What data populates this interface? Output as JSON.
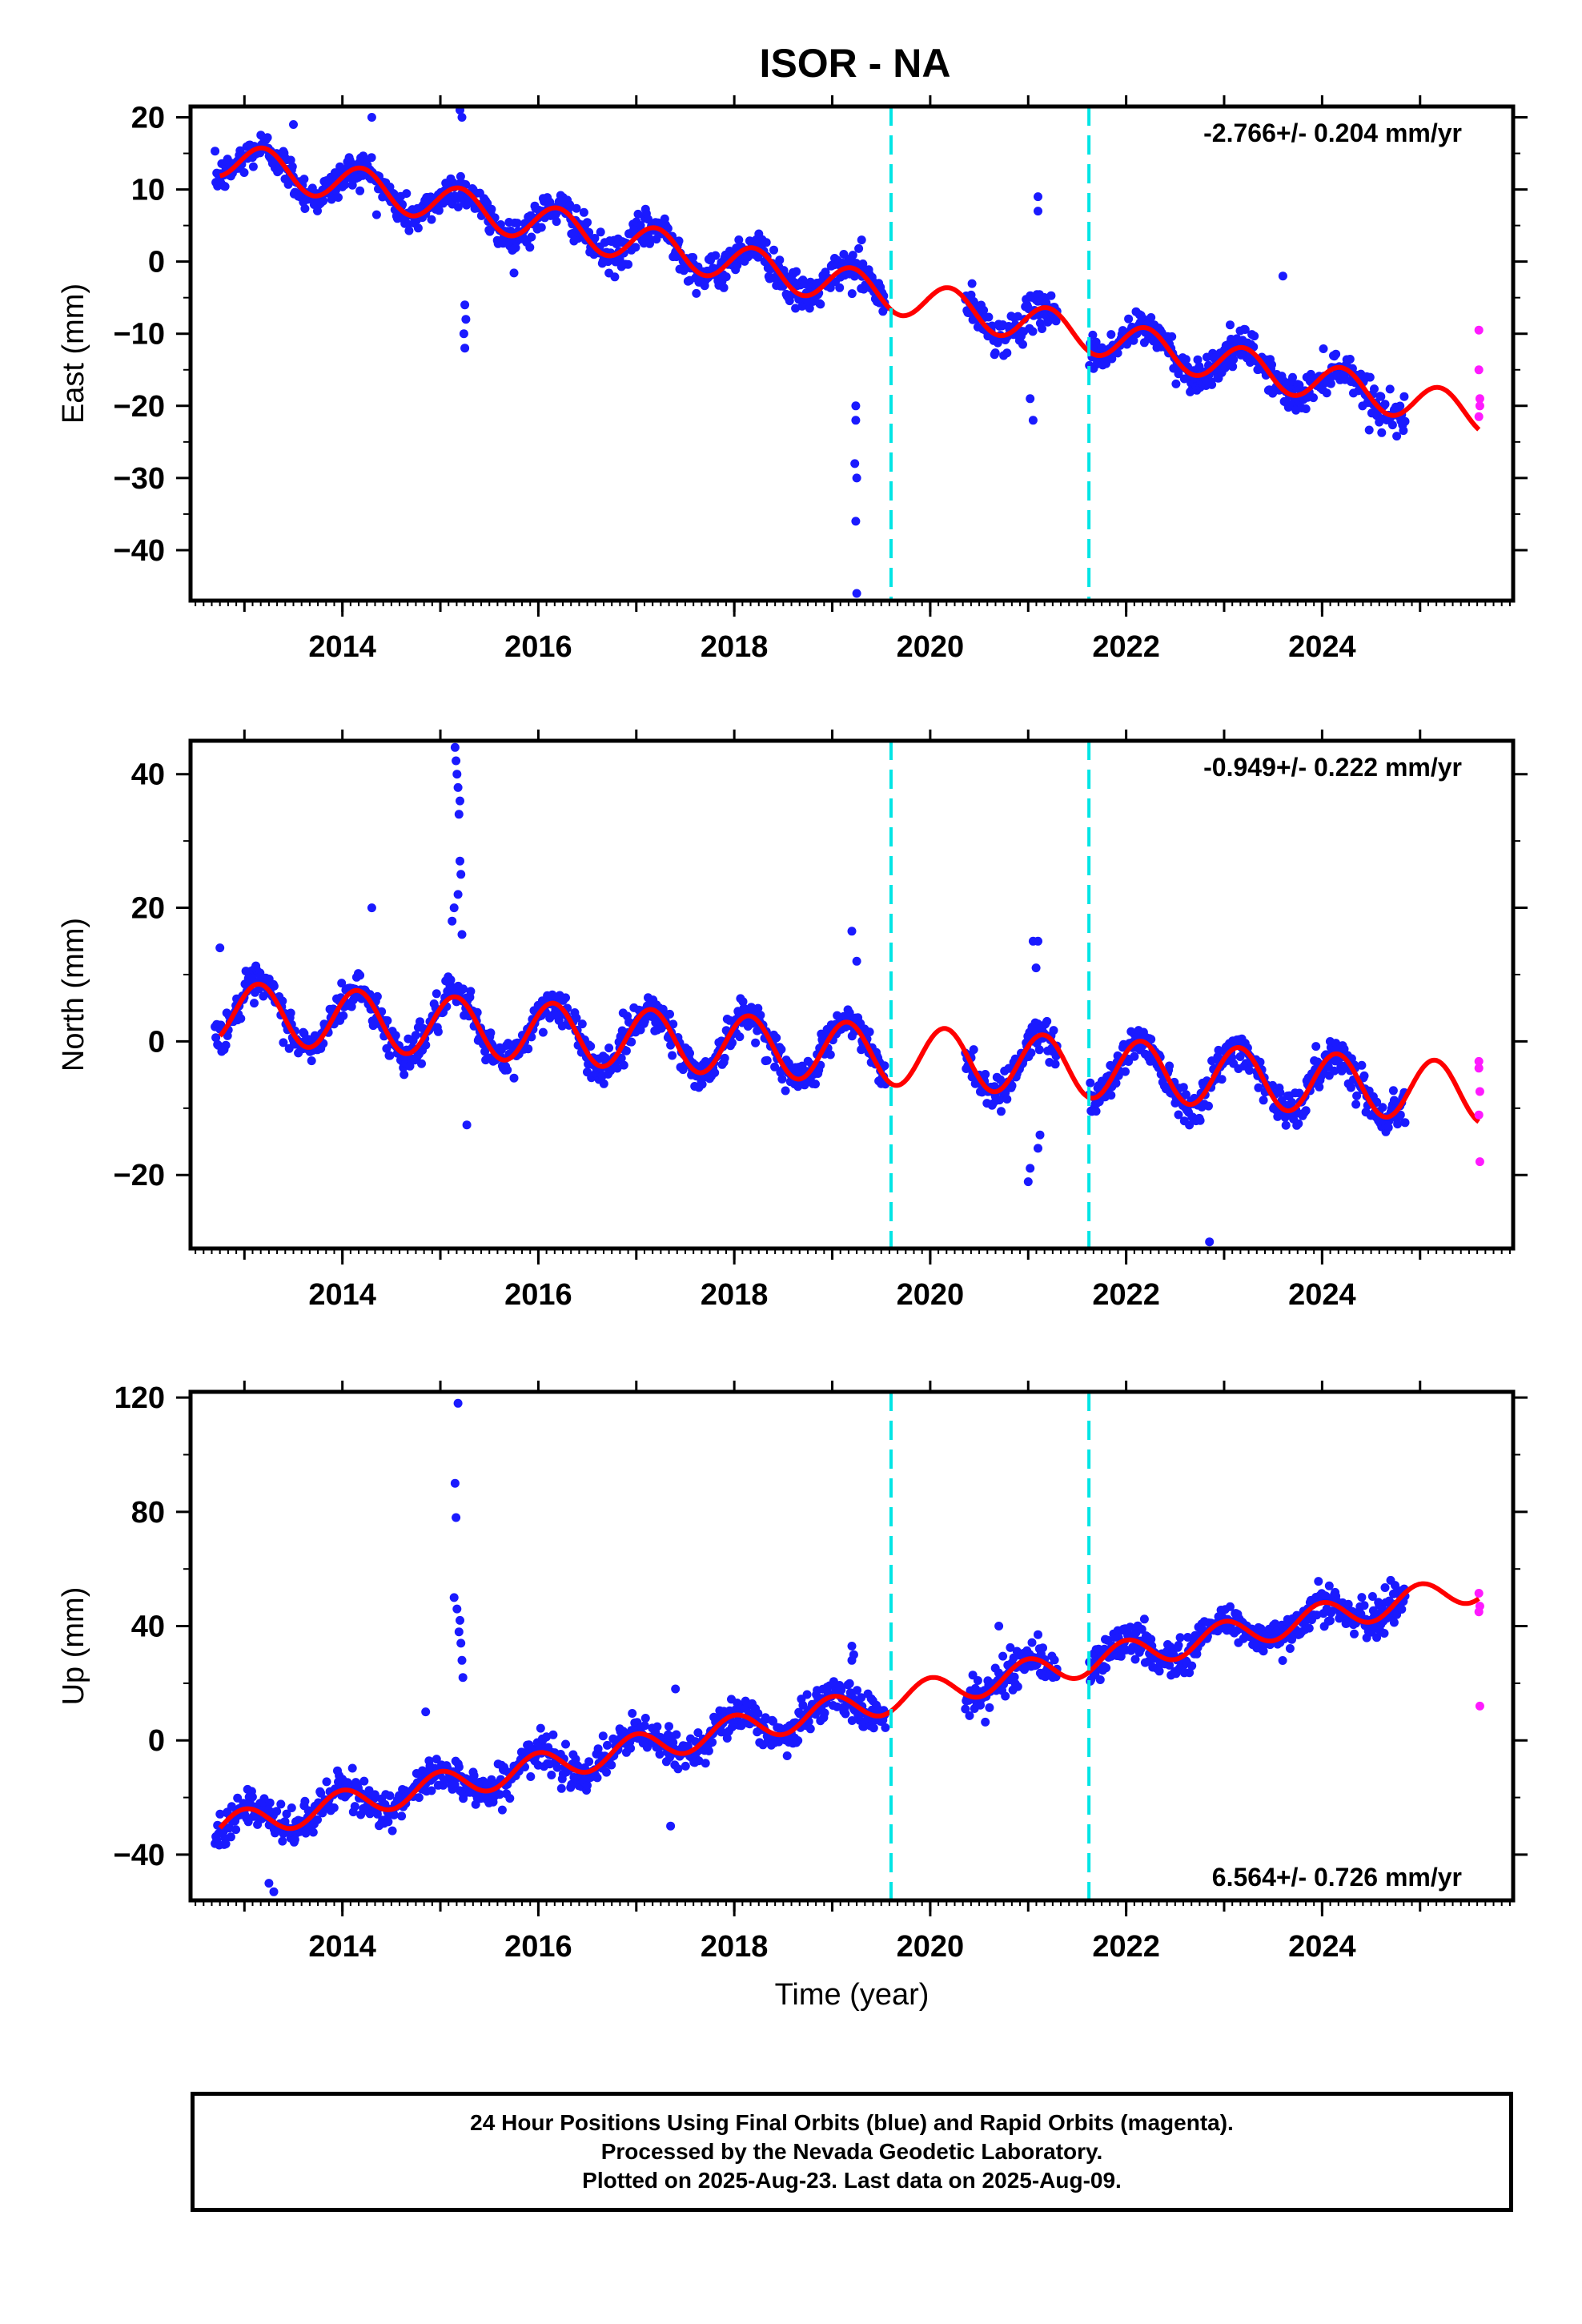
{
  "title": "ISOR - NA",
  "colors": {
    "final_orbits": "#1a1aff",
    "rapid_orbits": "#ff1aff",
    "model": "#ff0000",
    "event_lines": "#00e5e5",
    "axes": "#000000"
  },
  "chart_data": [
    {
      "type": "scatter",
      "ylabel": "East (mm)",
      "xlabel": "",
      "xlim": [
        2012.45,
        2025.95
      ],
      "ylim": [
        -47,
        21.5
      ],
      "x_ticks": [
        2014,
        2016,
        2018,
        2020,
        2022,
        2024
      ],
      "y_ticks": [
        20,
        10,
        0,
        -10,
        -20,
        -30,
        -40
      ],
      "x_tick_labels": [
        "2014",
        "2016",
        "2018",
        "2020",
        "2022",
        "2024"
      ],
      "y_tick_labels": [
        "20",
        "10",
        "0",
        "−10",
        "−20",
        "−30",
        "−40"
      ],
      "rate_label": "-2.766+/- 0.204 mm/yr",
      "rate_label_position": "top-right",
      "event_lines": [
        2019.6,
        2021.62
      ],
      "model": {
        "start_value": 14.5,
        "rate": -2.766,
        "annual_amplitude": 2.6,
        "phase": 0.2
      },
      "final_orbits_range": [
        2012.7,
        2024.85
      ],
      "outliers": [
        {
          "x": 2015.2,
          "y": 21
        },
        {
          "x": 2015.22,
          "y": 20
        },
        {
          "x": 2015.25,
          "y": -12
        },
        {
          "x": 2015.24,
          "y": -10
        },
        {
          "x": 2015.26,
          "y": -8
        },
        {
          "x": 2015.25,
          "y": -6
        },
        {
          "x": 2019.24,
          "y": -20
        },
        {
          "x": 2019.24,
          "y": -22
        },
        {
          "x": 2019.23,
          "y": -28
        },
        {
          "x": 2019.25,
          "y": -30
        },
        {
          "x": 2019.24,
          "y": -36
        },
        {
          "x": 2019.25,
          "y": -46
        },
        {
          "x": 2021.1,
          "y": 9
        },
        {
          "x": 2021.1,
          "y": 7
        },
        {
          "x": 2021.05,
          "y": -22
        },
        {
          "x": 2021.02,
          "y": -19
        },
        {
          "x": 2014.3,
          "y": 20
        },
        {
          "x": 2013.5,
          "y": 19
        },
        {
          "x": 2019.3,
          "y": 3
        },
        {
          "x": 2023.6,
          "y": -2
        }
      ],
      "rapid_orbits": [
        {
          "x": 2025.6,
          "y": -9.5
        },
        {
          "x": 2025.6,
          "y": -15
        },
        {
          "x": 2025.61,
          "y": -19
        },
        {
          "x": 2025.61,
          "y": -20
        },
        {
          "x": 2025.6,
          "y": -21.5
        }
      ]
    },
    {
      "type": "scatter",
      "ylabel": "North (mm)",
      "xlabel": "",
      "xlim": [
        2012.45,
        2025.95
      ],
      "ylim": [
        -31,
        45
      ],
      "x_ticks": [
        2014,
        2016,
        2018,
        2020,
        2022,
        2024
      ],
      "y_ticks": [
        40,
        20,
        0,
        -20
      ],
      "x_tick_labels": [
        "2014",
        "2016",
        "2018",
        "2020",
        "2022",
        "2024"
      ],
      "y_tick_labels": [
        "40",
        "20",
        "0",
        "−20"
      ],
      "rate_label": "-0.949+/- 0.222 mm/yr",
      "rate_label_position": "top-right",
      "event_lines": [
        2019.6,
        2021.62
      ],
      "model": {
        "start_value": 4.5,
        "rate": -0.949,
        "annual_amplitude": 4.5,
        "phase": 0.15
      },
      "final_orbits_range": [
        2012.7,
        2024.85
      ],
      "outliers": [
        {
          "x": 2015.15,
          "y": 44
        },
        {
          "x": 2015.16,
          "y": 42
        },
        {
          "x": 2015.17,
          "y": 40
        },
        {
          "x": 2015.18,
          "y": 38
        },
        {
          "x": 2015.2,
          "y": 36
        },
        {
          "x": 2015.19,
          "y": 34
        },
        {
          "x": 2015.2,
          "y": 27
        },
        {
          "x": 2015.21,
          "y": 25
        },
        {
          "x": 2015.18,
          "y": 22
        },
        {
          "x": 2015.14,
          "y": 20
        },
        {
          "x": 2015.12,
          "y": 18
        },
        {
          "x": 2015.22,
          "y": 16
        },
        {
          "x": 2015.27,
          "y": -12.5
        },
        {
          "x": 2012.75,
          "y": 14
        },
        {
          "x": 2014.3,
          "y": 20
        },
        {
          "x": 2019.2,
          "y": 16.5
        },
        {
          "x": 2019.25,
          "y": 12
        },
        {
          "x": 2021.05,
          "y": 15
        },
        {
          "x": 2021.1,
          "y": 15
        },
        {
          "x": 2021.08,
          "y": 11
        },
        {
          "x": 2021.0,
          "y": -21
        },
        {
          "x": 2021.02,
          "y": -19
        },
        {
          "x": 2021.1,
          "y": -16
        },
        {
          "x": 2021.12,
          "y": -14
        },
        {
          "x": 2022.85,
          "y": -30
        },
        {
          "x": 2024.8,
          "y": -11
        }
      ],
      "rapid_orbits": [
        {
          "x": 2025.6,
          "y": -3
        },
        {
          "x": 2025.6,
          "y": -4
        },
        {
          "x": 2025.61,
          "y": -7.5
        },
        {
          "x": 2025.6,
          "y": -11
        },
        {
          "x": 2025.61,
          "y": -18
        }
      ]
    },
    {
      "type": "scatter",
      "ylabel": "Up (mm)",
      "xlabel": "Time (year)",
      "xlim": [
        2012.45,
        2025.95
      ],
      "ylim": [
        -56,
        122
      ],
      "x_ticks": [
        2014,
        2016,
        2018,
        2020,
        2022,
        2024
      ],
      "y_ticks": [
        120,
        80,
        40,
        0,
        -40
      ],
      "x_tick_labels": [
        "2014",
        "2016",
        "2018",
        "2020",
        "2022",
        "2024"
      ],
      "y_tick_labels": [
        "120",
        "80",
        "40",
        "0",
        "−40"
      ],
      "rate_label": "6.564+/- 0.726 mm/yr",
      "rate_label_position": "bottom-right",
      "event_lines": [
        2019.6,
        2021.62
      ],
      "model": {
        "start_value": -31,
        "rate": 6.564,
        "annual_amplitude": 5,
        "phase": 0.0
      },
      "final_orbits_range": [
        2012.7,
        2024.85
      ],
      "outliers": [
        {
          "x": 2015.18,
          "y": 118
        },
        {
          "x": 2015.15,
          "y": 90
        },
        {
          "x": 2015.16,
          "y": 78
        },
        {
          "x": 2015.14,
          "y": 50
        },
        {
          "x": 2015.17,
          "y": 46
        },
        {
          "x": 2015.2,
          "y": 42
        },
        {
          "x": 2015.19,
          "y": 38
        },
        {
          "x": 2015.21,
          "y": 34
        },
        {
          "x": 2015.22,
          "y": 28
        },
        {
          "x": 2015.23,
          "y": 22
        },
        {
          "x": 2014.85,
          "y": 10
        },
        {
          "x": 2017.4,
          "y": 18
        },
        {
          "x": 2017.35,
          "y": -30
        },
        {
          "x": 2019.2,
          "y": 33
        },
        {
          "x": 2019.22,
          "y": 30
        },
        {
          "x": 2019.2,
          "y": 28
        },
        {
          "x": 2013.3,
          "y": -53
        },
        {
          "x": 2013.25,
          "y": -50
        },
        {
          "x": 2020.7,
          "y": 40
        },
        {
          "x": 2021.1,
          "y": 37
        },
        {
          "x": 2024.7,
          "y": 56
        }
      ],
      "rapid_orbits": [
        {
          "x": 2025.6,
          "y": 51.5
        },
        {
          "x": 2025.61,
          "y": 47
        },
        {
          "x": 2025.6,
          "y": 45
        },
        {
          "x": 2025.61,
          "y": 12
        }
      ]
    }
  ],
  "footer": {
    "line1": "24 Hour Positions Using Final Orbits (blue) and Rapid Orbits (magenta).",
    "line2": "Processed by the Nevada Geodetic Laboratory.",
    "line3": "Plotted on 2025-Aug-23. Last data on 2025-Aug-09."
  }
}
